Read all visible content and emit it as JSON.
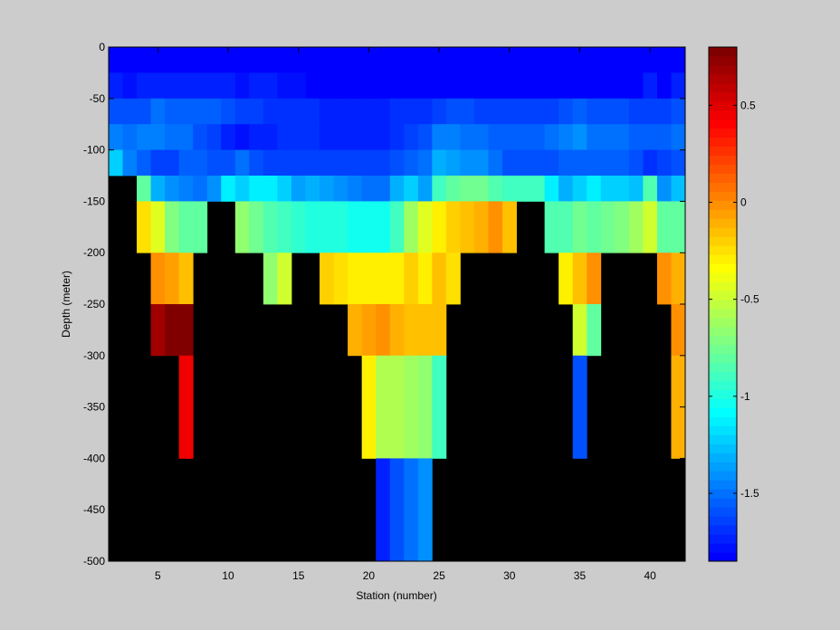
{
  "chart_data": {
    "type": "heatmap",
    "xlabel": "Station (number)",
    "ylabel": "Depth (meter)",
    "xlim": [
      1.5,
      42.5
    ],
    "ylim": [
      -500,
      0
    ],
    "xticks": [
      5,
      10,
      15,
      20,
      25,
      30,
      35,
      40
    ],
    "yticks": [
      0,
      -50,
      -100,
      -150,
      -200,
      -250,
      -300,
      -350,
      -400,
      -450,
      -500
    ],
    "stations": [
      2,
      42
    ],
    "depth_bins": [
      0,
      -25,
      -50,
      -75,
      -100,
      -125,
      -150,
      -200,
      -250,
      -300,
      -400,
      -500
    ],
    "clim": [
      -1.85,
      0.8
    ],
    "colorbar_ticks": [
      0.5,
      0,
      -0.5,
      -1,
      -1.5
    ],
    "colormap": [
      "#0000ff",
      "#0010ff",
      "#0020ff",
      "#0030ff",
      "#0040ff",
      "#0050ff",
      "#0060ff",
      "#0070ff",
      "#0080ff",
      "#0090ff",
      "#00a0ff",
      "#00b0ff",
      "#00c0ff",
      "#00d0ff",
      "#00e0ff",
      "#00f0ff",
      "#00ffff",
      "#10fff0",
      "#20ffe0",
      "#30ffd0",
      "#40ffc0",
      "#50ffb0",
      "#60ffa0",
      "#70ff90",
      "#80ff80",
      "#90ff70",
      "#a0ff60",
      "#b0ff50",
      "#c0ff40",
      "#d0ff30",
      "#e0ff20",
      "#f0ff10",
      "#ffff00",
      "#fff000",
      "#ffe000",
      "#ffd000",
      "#ffc000",
      "#ffb000",
      "#ffa000",
      "#ff9000",
      "#ff8000",
      "#ff7000",
      "#ff6000",
      "#ff5000",
      "#ff4000",
      "#ff3000",
      "#ff2000",
      "#ff1000",
      "#ff0000",
      "#f00000",
      "#e00000",
      "#d00000",
      "#c00000",
      "#b00000",
      "#a00000",
      "#900000",
      "#800000"
    ],
    "missing_color": "#000000",
    "values": [
      [
        -1.85,
        -1.82,
        -1.85,
        -1.85,
        -1.82,
        -1.85,
        -1.85,
        -1.85,
        -1.85,
        -1.85,
        -1.85,
        -1.85,
        -1.85,
        -1.85,
        -1.85,
        -1.85,
        -1.85,
        -1.85,
        -1.85,
        -1.85,
        -1.85,
        -1.85,
        -1.85,
        -1.85,
        -1.85,
        -1.85,
        -1.85,
        -1.85,
        -1.85,
        -1.85,
        -1.85,
        -1.85,
        -1.85,
        -1.85,
        -1.85,
        -1.85,
        -1.85,
        -1.85,
        -1.85,
        -1.85,
        -1.85
      ],
      [
        -1.75,
        -1.8,
        -1.75,
        -1.72,
        -1.75,
        -1.72,
        -1.72,
        -1.72,
        -1.75,
        -1.78,
        -1.75,
        -1.75,
        -1.78,
        -1.8,
        -1.82,
        -1.82,
        -1.82,
        -1.82,
        -1.82,
        -1.82,
        -1.82,
        -1.82,
        -1.82,
        -1.82,
        -1.82,
        -1.82,
        -1.82,
        -1.82,
        -1.82,
        -1.82,
        -1.82,
        -1.82,
        -1.82,
        -1.82,
        -1.82,
        -1.82,
        -1.82,
        -1.82,
        -1.75,
        -1.82,
        -1.75
      ],
      [
        -1.6,
        -1.6,
        -1.58,
        -1.5,
        -1.55,
        -1.55,
        -1.55,
        -1.55,
        -1.6,
        -1.62,
        -1.65,
        -1.68,
        -1.7,
        -1.7,
        -1.7,
        -1.72,
        -1.72,
        -1.72,
        -1.72,
        -1.72,
        -1.7,
        -1.7,
        -1.68,
        -1.62,
        -1.6,
        -1.6,
        -1.62,
        -1.65,
        -1.65,
        -1.65,
        -1.65,
        -1.62,
        -1.58,
        -1.55,
        -1.58,
        -1.6,
        -1.6,
        -1.62,
        -1.65,
        -1.62,
        -1.6
      ],
      [
        -1.45,
        -1.5,
        -1.45,
        -1.45,
        -1.52,
        -1.52,
        -1.58,
        -1.62,
        -1.72,
        -1.78,
        -1.75,
        -1.72,
        -1.7,
        -1.7,
        -1.7,
        -1.72,
        -1.72,
        -1.72,
        -1.72,
        -1.72,
        -1.68,
        -1.65,
        -1.6,
        -1.45,
        -1.45,
        -1.5,
        -1.5,
        -1.55,
        -1.55,
        -1.55,
        -1.55,
        -1.5,
        -1.45,
        -1.4,
        -1.5,
        -1.5,
        -1.5,
        -1.55,
        -1.55,
        -1.55,
        -1.5
      ],
      [
        -1.2,
        -1.45,
        -1.55,
        -1.62,
        -1.62,
        -1.55,
        -1.55,
        -1.6,
        -1.6,
        -1.5,
        -1.6,
        -1.62,
        -1.65,
        -1.65,
        -1.65,
        -1.65,
        -1.65,
        -1.65,
        -1.65,
        -1.65,
        -1.6,
        -1.55,
        -1.5,
        -1.3,
        -1.35,
        -1.4,
        -1.4,
        -1.5,
        -1.6,
        -1.6,
        -1.6,
        -1.6,
        -1.55,
        -1.55,
        -1.55,
        -1.55,
        -1.55,
        -1.6,
        -1.7,
        -1.65,
        -1.6
      ],
      [
        null,
        null,
        -0.8,
        -1.3,
        -1.4,
        -1.45,
        -1.5,
        -1.4,
        -1.15,
        -1.2,
        -1.15,
        -1.15,
        -1.2,
        -1.35,
        -1.3,
        -1.35,
        -1.4,
        -1.45,
        -1.5,
        -1.5,
        -1.3,
        -1.2,
        -1.35,
        -0.9,
        -0.8,
        -0.75,
        -0.75,
        -0.85,
        -0.9,
        -0.9,
        -0.9,
        -1.15,
        -1.3,
        -1.2,
        -1.15,
        -1.2,
        -1.2,
        -1.25,
        -0.85,
        -1.4,
        -1.25
      ],
      [
        null,
        null,
        -0.25,
        -0.45,
        -0.7,
        -0.8,
        -0.8,
        null,
        null,
        -0.65,
        -0.75,
        -0.85,
        -0.9,
        -0.95,
        -1.0,
        -1.0,
        -1.0,
        -1.05,
        -1.05,
        -1.05,
        -0.9,
        -0.6,
        -0.45,
        -0.3,
        -0.2,
        -0.15,
        -0.1,
        0.0,
        -0.15,
        null,
        null,
        -0.85,
        -0.85,
        -0.75,
        -0.8,
        -0.75,
        -0.7,
        -0.6,
        -0.5,
        -0.8,
        -0.8
      ],
      [
        null,
        null,
        null,
        0.0,
        -0.05,
        -0.15,
        null,
        null,
        null,
        null,
        null,
        -0.65,
        -0.5,
        null,
        null,
        -0.2,
        -0.25,
        -0.3,
        -0.3,
        -0.3,
        -0.3,
        -0.2,
        -0.3,
        -0.15,
        -0.25,
        null,
        null,
        null,
        null,
        null,
        null,
        null,
        -0.3,
        -0.15,
        0.0,
        null,
        null,
        null,
        null,
        0.0,
        -0.1
      ],
      [
        null,
        null,
        null,
        0.7,
        0.8,
        0.8,
        null,
        null,
        null,
        null,
        null,
        null,
        null,
        null,
        null,
        null,
        null,
        -0.1,
        -0.05,
        0.0,
        -0.1,
        -0.15,
        -0.15,
        -0.15,
        null,
        null,
        null,
        null,
        null,
        null,
        null,
        null,
        null,
        -0.5,
        -0.8,
        null,
        null,
        null,
        null,
        null,
        0.0
      ],
      [
        null,
        null,
        null,
        null,
        null,
        0.45,
        null,
        null,
        null,
        null,
        null,
        null,
        null,
        null,
        null,
        null,
        null,
        null,
        -0.3,
        -0.55,
        -0.55,
        -0.6,
        -0.65,
        -0.9,
        null,
        null,
        null,
        null,
        null,
        null,
        null,
        null,
        null,
        -1.6,
        null,
        null,
        null,
        null,
        null,
        null,
        -0.1
      ],
      [
        null,
        null,
        null,
        null,
        null,
        null,
        null,
        null,
        null,
        null,
        null,
        null,
        null,
        null,
        null,
        null,
        null,
        null,
        null,
        -1.72,
        -1.6,
        -1.5,
        -1.4,
        null,
        null,
        null,
        null,
        null,
        null,
        null,
        null,
        null,
        null,
        null,
        null,
        null,
        null,
        null,
        null,
        null,
        null
      ]
    ]
  }
}
